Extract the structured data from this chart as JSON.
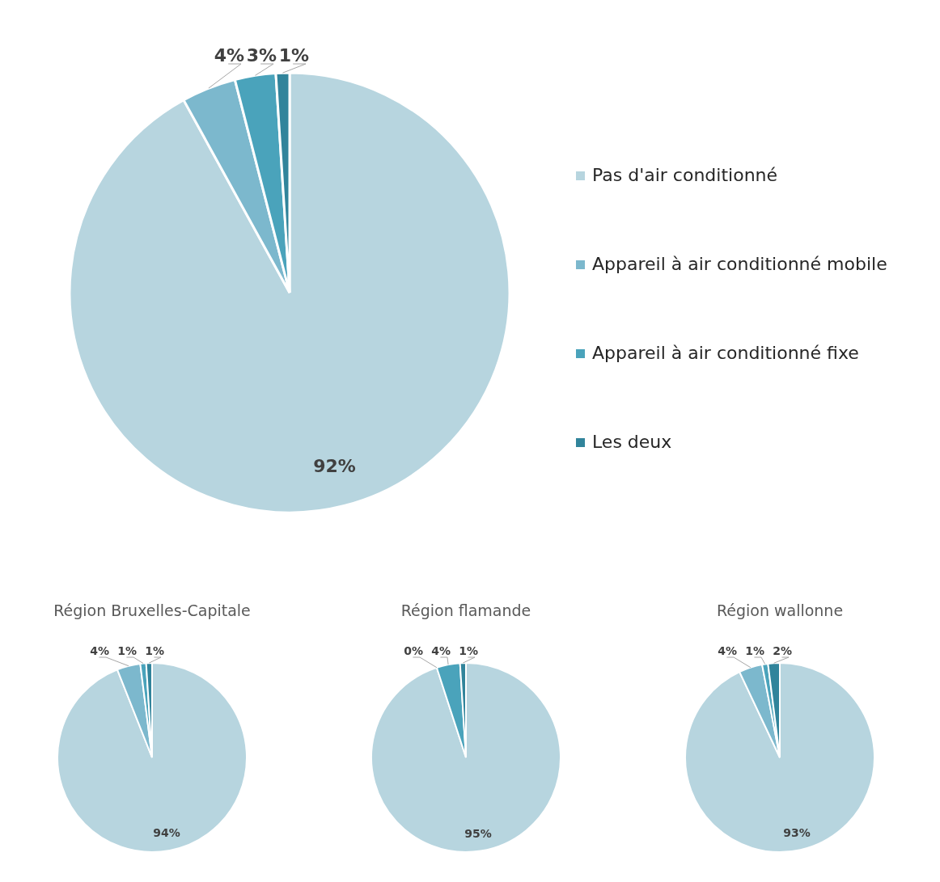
{
  "chart_data": [
    {
      "type": "pie",
      "categories": [
        "Pas d'air conditionné",
        "Appareil à air conditionné mobile",
        "Appareil à air conditionné fixe",
        "Les deux"
      ],
      "values": [
        92,
        4,
        3,
        1
      ],
      "value_labels": [
        "92%",
        "4%",
        "3%",
        "1%"
      ],
      "colors": [
        "#b7d5df",
        "#7cb8cd",
        "#4aa3bb",
        "#31849b"
      ],
      "legend": "right"
    },
    {
      "type": "pie",
      "title": "Région Bruxelles-Capitale",
      "categories": [
        null,
        null,
        null,
        null
      ],
      "values": [
        94,
        4,
        1,
        1
      ],
      "value_labels": [
        "94%",
        "4%",
        "1%",
        "1%"
      ],
      "colors": [
        "#b7d5df",
        "#7cb8cd",
        "#4aa3bb",
        "#31849b"
      ]
    },
    {
      "type": "pie",
      "title": "Région flamande",
      "categories": [
        null,
        null,
        null,
        null
      ],
      "values": [
        95,
        0,
        4,
        1
      ],
      "value_labels": [
        "95%",
        "0%",
        "4%",
        "1%"
      ],
      "colors": [
        "#b7d5df",
        "#7cb8cd",
        "#4aa3bb",
        "#31849b"
      ]
    },
    {
      "type": "pie",
      "title": "Région wallonne",
      "categories": [
        null,
        null,
        null,
        null
      ],
      "values": [
        93,
        4,
        1,
        2
      ],
      "value_labels": [
        "93%",
        "4%",
        "1%",
        "2%"
      ],
      "colors": [
        "#b7d5df",
        "#7cb8cd",
        "#4aa3bb",
        "#31849b"
      ]
    }
  ]
}
